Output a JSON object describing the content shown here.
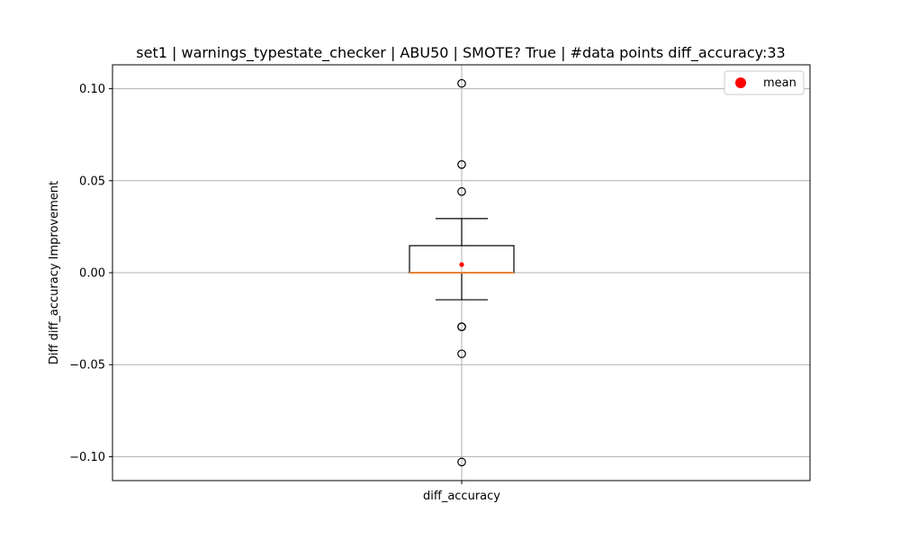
{
  "chart_data": {
    "type": "box",
    "title": "set1 | warnings_typestate_checker | ABU50 | SMOTE? True | #data points diff_accuracy:33",
    "xlabel": "",
    "ylabel": "Diff diff_accuracy Improvement",
    "categories": [
      "diff_accuracy"
    ],
    "ylim": [
      -0.113,
      0.113
    ],
    "yticks": [
      0.1,
      0.05,
      0.0,
      -0.05,
      -0.1
    ],
    "ytick_labels": [
      "0.10",
      "0.05",
      "0.00",
      "−0.05",
      "−0.10"
    ],
    "grid": true,
    "legend": {
      "position": "top-right",
      "entries": [
        "mean"
      ]
    },
    "boxes": [
      {
        "name": "diff_accuracy",
        "q1": 0.0,
        "median": 0.0,
        "q3": 0.0147,
        "whisker_low": -0.0147,
        "whisker_high": 0.0294,
        "mean": 0.0044,
        "outliers": [
          0.1029,
          0.0588,
          0.0441,
          -0.0294,
          -0.0294,
          -0.0441,
          -0.1029
        ]
      }
    ],
    "colors": {
      "median": "#e8843a",
      "mean": "#ff0000",
      "box": "#000000",
      "grid": "#b0b0b0"
    }
  }
}
